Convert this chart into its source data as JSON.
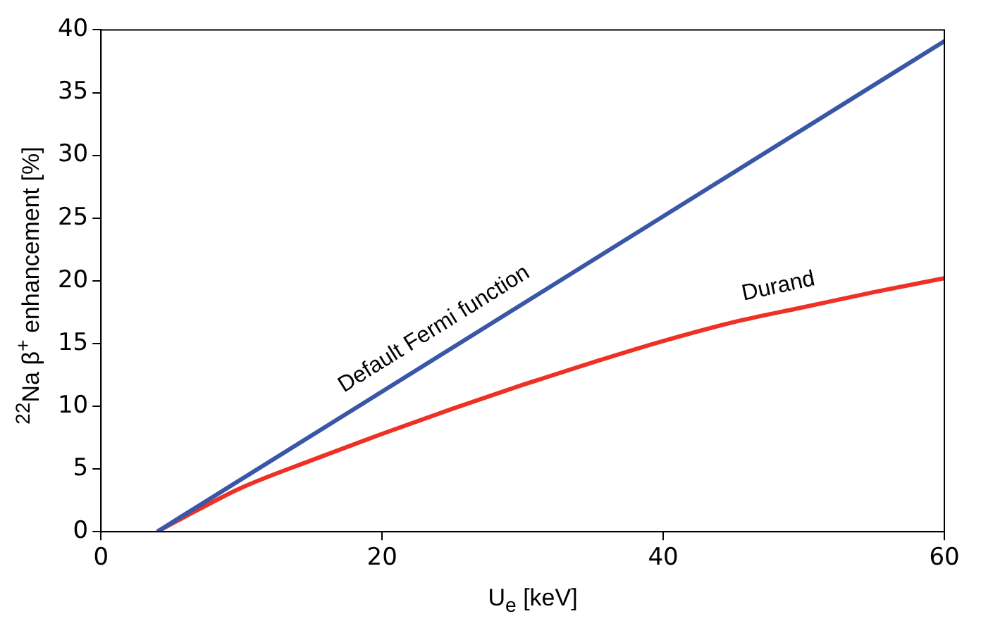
{
  "chart_data": {
    "type": "line",
    "xlabel": "U$_{e}$ [keV]",
    "ylabel": "$^{22}$Na β$^{+}$ enhancement [%]",
    "xlim": [
      0,
      60
    ],
    "xticks": [
      0,
      20,
      40,
      60
    ],
    "ylim": [
      0,
      40
    ],
    "yticks": [
      0,
      5,
      10,
      15,
      20,
      25,
      30,
      35,
      40
    ],
    "grid": false,
    "legend": false,
    "marker": "none",
    "line_style": "solid",
    "series": [
      {
        "name": "Default Fermi function",
        "color": "#3a57a7",
        "x": [
          4,
          60
        ],
        "values": [
          0,
          39.1
        ]
      },
      {
        "name": "Durand",
        "color": "#ee3124",
        "x": [
          4,
          7,
          10,
          15,
          20,
          25,
          30,
          35,
          40,
          45,
          50,
          55,
          60
        ],
        "values": [
          0,
          1.8,
          3.5,
          5.7,
          7.8,
          9.8,
          11.7,
          13.5,
          15.2,
          16.7,
          17.9,
          19.1,
          20.2
        ]
      }
    ]
  }
}
